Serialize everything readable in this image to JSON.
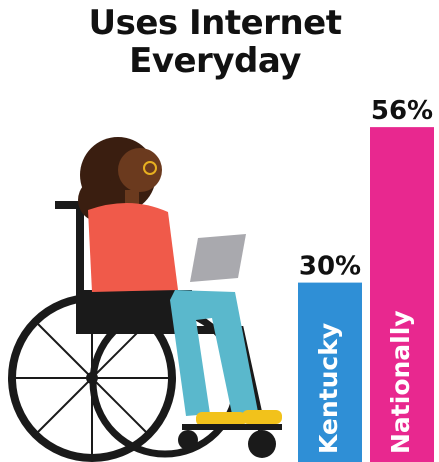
{
  "chart_data": {
    "type": "bar",
    "title": "Uses Internet Everyday",
    "categories": [
      "Kentucky",
      "Nationally"
    ],
    "values": [
      30,
      56
    ],
    "value_labels": [
      "30%",
      "56%"
    ],
    "colors": [
      "#2f8fd6",
      "#e8288f"
    ]
  }
}
